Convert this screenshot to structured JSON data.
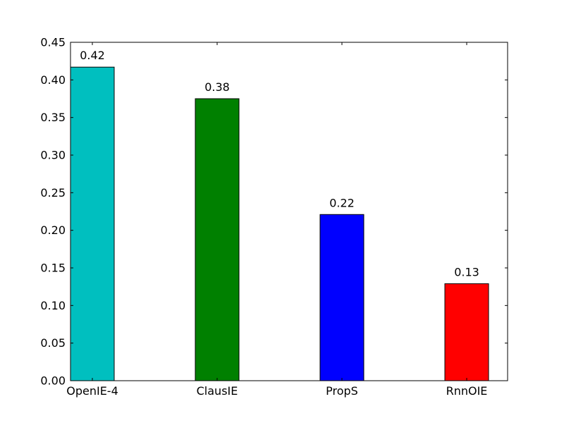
{
  "chart_data": {
    "type": "bar",
    "categories": [
      "OpenIE-4",
      "ClausIE",
      "PropS",
      "RnnOIE"
    ],
    "values": [
      0.417,
      0.375,
      0.221,
      0.129
    ],
    "value_labels": [
      "0.42",
      "0.38",
      "0.22",
      "0.13"
    ],
    "colors": [
      "#00bfbf",
      "#008000",
      "#0000ff",
      "#ff0000"
    ],
    "ylim": [
      0,
      0.45
    ],
    "yticks": [
      0.0,
      0.05,
      0.1,
      0.15,
      0.2,
      0.25,
      0.3,
      0.35,
      0.4,
      0.45
    ],
    "ytick_labels": [
      "0.00",
      "0.05",
      "0.10",
      "0.15",
      "0.20",
      "0.25",
      "0.30",
      "0.35",
      "0.40",
      "0.45"
    ],
    "title": "",
    "xlabel": "",
    "ylabel": "",
    "grid": false,
    "legend": "none"
  }
}
